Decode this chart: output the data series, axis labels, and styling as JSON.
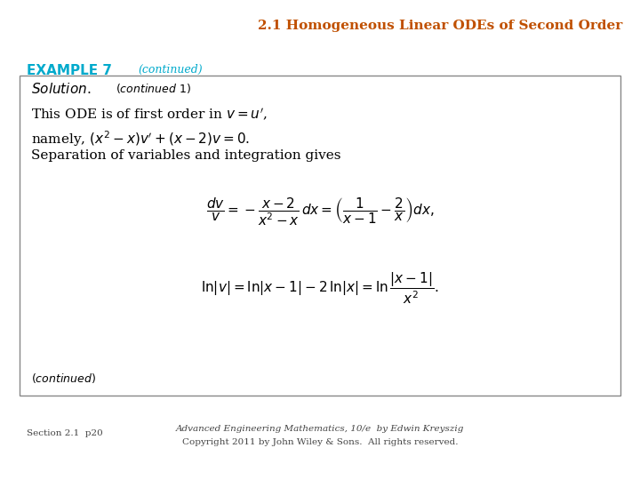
{
  "title": "2.1 Homogeneous Linear ODEs of Second Order",
  "title_color": "#C05000",
  "title_fontsize": 11,
  "example_label": "EXAMPLE 7",
  "example_label_color": "#00AACC",
  "example_continued": "(continued)",
  "example_fontsize": 11,
  "box_line_color": "#888888",
  "line1": "This ODE is of first order in $v = u'$,",
  "line2": "namely, $(x^2 - x)v' + (x - 2)v = 0.$",
  "line3": "Separation of variables and integration gives",
  "eq1": "$\\dfrac{dv}{v} = -\\dfrac{x-2}{x^2-x}\\,dx = \\left(\\dfrac{1}{x-1} - \\dfrac{2}{x}\\right)dx,$",
  "eq2": "$\\ln|v| = \\ln|x-1| - 2\\,\\ln|x| = \\ln\\dfrac{|x-1|}{x^2}.$",
  "footer_left": "Section 2.1  p20",
  "footer_right_line1": "Advanced Engineering Mathematics, 10/e  by Edwin Kreyszig",
  "footer_right_line2": "Copyright 2011 by John Wiley & Sons.  All rights reserved.",
  "bg_color": "#FFFFFF",
  "text_color": "#000000",
  "footer_color": "#444444",
  "content_fontsize": 11,
  "solution_fontsize": 11,
  "eq_fontsize": 11,
  "footer_fontsize": 7.5
}
